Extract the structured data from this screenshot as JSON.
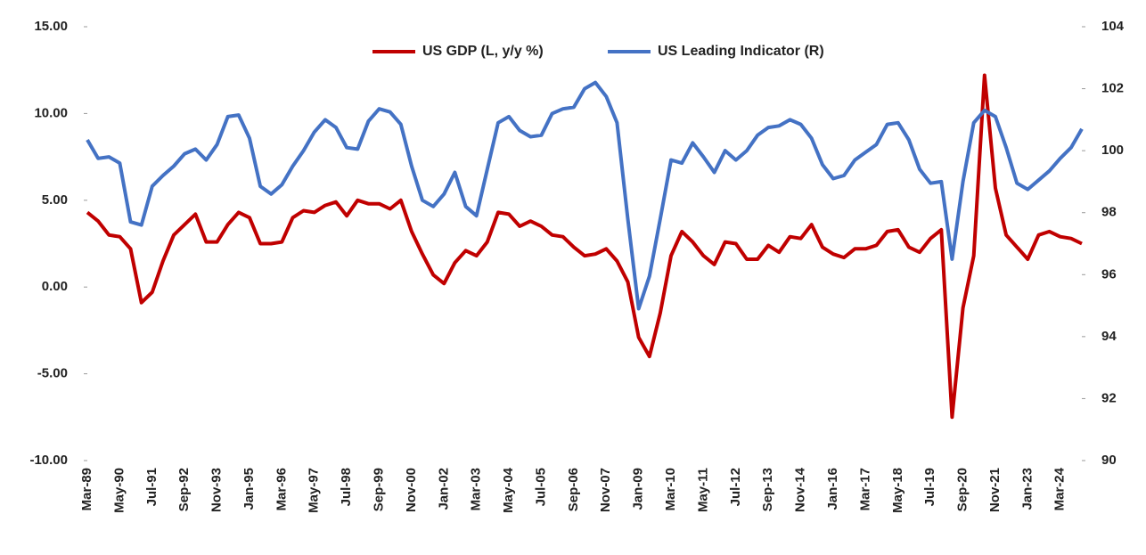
{
  "chart_data": {
    "type": "line",
    "legend": "top",
    "grid": false,
    "categories": [
      "Mar-89",
      null,
      null,
      "May-90",
      null,
      null,
      "Jul-91",
      null,
      null,
      "Sep-92",
      null,
      null,
      "Nov-93",
      null,
      null,
      "Jan-95",
      null,
      null,
      "Mar-96",
      null,
      null,
      "May-97",
      null,
      null,
      "Jul-98",
      null,
      null,
      "Sep-99",
      null,
      null,
      "Nov-00",
      null,
      null,
      "Jan-02",
      null,
      null,
      "Mar-03",
      null,
      null,
      "May-04",
      null,
      null,
      "Jul-05",
      null,
      null,
      "Sep-06",
      null,
      null,
      "Nov-07",
      null,
      null,
      "Jan-09",
      null,
      null,
      "Mar-10",
      null,
      null,
      "May-11",
      null,
      null,
      "Jul-12",
      null,
      null,
      "Sep-13",
      null,
      null,
      "Nov-14",
      null,
      null,
      "Jan-16",
      null,
      null,
      "Mar-17",
      null,
      null,
      "May-18",
      null,
      null,
      "Jul-19",
      null,
      null,
      "Sep-20",
      null,
      null,
      "Nov-21",
      null,
      null,
      "Jan-23",
      null,
      null,
      "Mar-24",
      null,
      null
    ],
    "series": [
      {
        "name": "US GDP (L, y/y %)",
        "color": "#c00000",
        "axis": "y",
        "values": [
          4.3,
          3.8,
          3.0,
          2.9,
          2.2,
          -0.9,
          -0.3,
          1.5,
          3.0,
          3.6,
          4.2,
          2.6,
          2.6,
          3.6,
          4.3,
          4.0,
          2.5,
          2.5,
          2.6,
          4.0,
          4.4,
          4.3,
          4.7,
          4.9,
          4.1,
          5.0,
          4.8,
          4.8,
          4.5,
          5.0,
          3.2,
          1.9,
          0.7,
          0.2,
          1.4,
          2.1,
          1.8,
          2.6,
          4.3,
          4.2,
          3.5,
          3.8,
          3.5,
          3.0,
          2.9,
          2.3,
          1.8,
          1.9,
          2.2,
          1.5,
          0.3,
          -2.9,
          -4.0,
          -1.5,
          1.8,
          3.2,
          2.6,
          1.8,
          1.3,
          2.6,
          2.5,
          1.6,
          1.6,
          2.4,
          2.0,
          2.9,
          2.8,
          3.6,
          2.3,
          1.9,
          1.7,
          2.2,
          2.2,
          2.4,
          3.2,
          3.3,
          2.3,
          2.0,
          2.8,
          3.3,
          -7.5,
          -1.2,
          1.8,
          12.2,
          5.7,
          3.0,
          2.3,
          1.6,
          3.0,
          3.2,
          2.9,
          2.8,
          2.5
        ]
      },
      {
        "name": "US Leading Indicator (R)",
        "color": "#4472c4",
        "axis": "y2",
        "values": [
          100.35,
          99.75,
          99.8,
          99.6,
          97.7,
          97.6,
          98.85,
          99.2,
          99.5,
          99.9,
          100.05,
          99.7,
          100.2,
          101.1,
          101.15,
          100.4,
          98.85,
          98.6,
          98.9,
          99.5,
          100.0,
          100.6,
          101.0,
          100.75,
          100.1,
          100.05,
          100.95,
          101.35,
          101.25,
          100.85,
          99.5,
          98.4,
          98.2,
          98.6,
          99.3,
          98.2,
          97.9,
          99.4,
          100.9,
          101.1,
          100.65,
          100.45,
          100.5,
          101.2,
          101.35,
          101.4,
          102.0,
          102.2,
          101.75,
          100.9,
          97.8,
          94.9,
          95.95,
          97.8,
          99.7,
          99.6,
          100.25,
          99.8,
          99.3,
          100.0,
          99.7,
          100.0,
          100.5,
          100.75,
          100.8,
          101.0,
          100.85,
          100.4,
          99.55,
          99.1,
          99.2,
          99.7,
          99.95,
          100.2,
          100.85,
          100.9,
          100.35,
          99.4,
          98.95,
          99.0,
          96.5,
          99.0,
          100.9,
          101.3,
          101.1,
          100.1,
          98.95,
          98.75,
          99.05,
          99.35,
          99.75,
          100.1,
          100.7
        ]
      }
    ],
    "ylim": [
      -10,
      15
    ],
    "yticks": [
      {
        "value": -10,
        "label": "-10.00"
      },
      {
        "value": -5,
        "label": "-5.00"
      },
      {
        "value": 0,
        "label": "0.00"
      },
      {
        "value": 5,
        "label": "5.00"
      },
      {
        "value": 10,
        "label": "10.00"
      },
      {
        "value": 15,
        "label": "15.00"
      }
    ],
    "y2lim": [
      90,
      104
    ],
    "y2ticks": [
      90,
      92,
      94,
      96,
      98,
      100,
      102,
      104
    ]
  }
}
